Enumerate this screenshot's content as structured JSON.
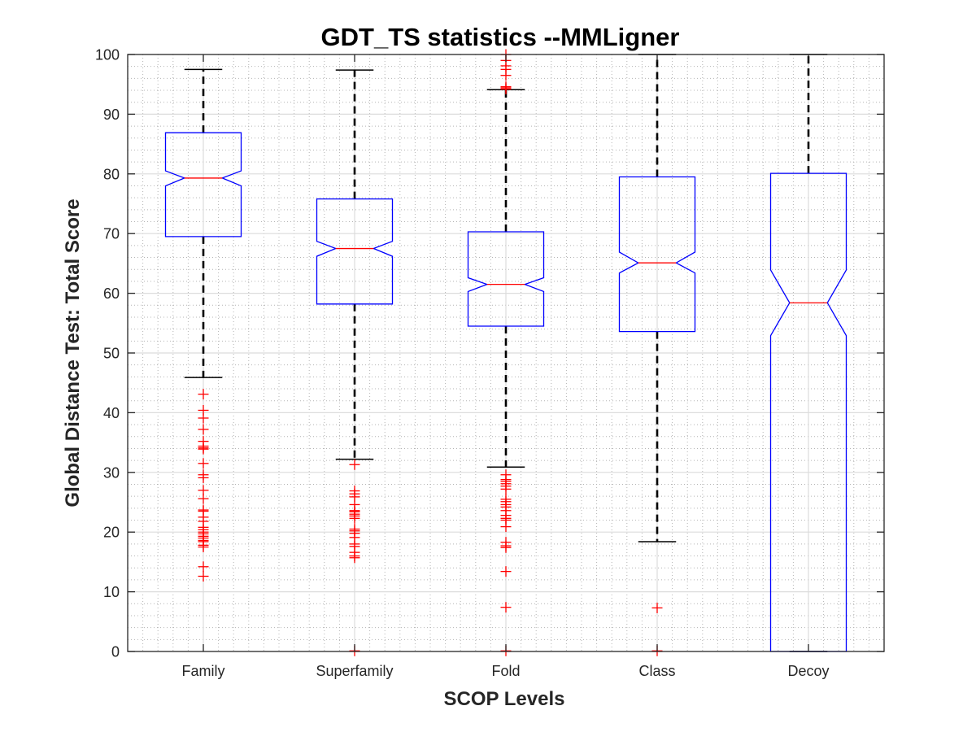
{
  "chart_data": {
    "type": "boxplot",
    "title": "GDT_TS statistics --MMLigner",
    "xlabel": "SCOP Levels",
    "ylabel": "Global Distance Test: Total Score",
    "ylim": [
      0,
      100
    ],
    "yticks": [
      0,
      10,
      20,
      30,
      40,
      50,
      60,
      70,
      80,
      90,
      100
    ],
    "ytick_labels": [
      "0",
      "10",
      "20",
      "30",
      "40",
      "50",
      "60",
      "70",
      "80",
      "90",
      "100"
    ],
    "grid": "major and minor",
    "notched": true,
    "colors": {
      "box": "#0000ff",
      "median": "#ff0000",
      "whisker": "#000000",
      "outlier": "#ff0000",
      "grid_major": "#dcdcdc",
      "grid_minor": "#b4b4b4",
      "axis": "#262626"
    },
    "categories": [
      "Family",
      "Superfamily",
      "Fold",
      "Class",
      "Decoy"
    ],
    "series": [
      {
        "name": "Family",
        "whisker_low": 45.9,
        "q1": 69.5,
        "notch_low": 78.0,
        "median": 79.3,
        "notch_high": 80.5,
        "q3": 86.9,
        "whisker_high": 97.5,
        "outliers": [
          43.1,
          40.4,
          39.1,
          37.2,
          35.2,
          34.4,
          34.1,
          33.9,
          31.5,
          29.6,
          29.1,
          27.0,
          25.6,
          23.7,
          23.5,
          22.5,
          21.8,
          20.8,
          20.4,
          20.0,
          19.7,
          19.3,
          19.0,
          18.6,
          18.4,
          17.8,
          17.5,
          14.2,
          12.6
        ]
      },
      {
        "name": "Superfamily",
        "whisker_low": 32.2,
        "q1": 58.2,
        "notch_low": 66.2,
        "median": 67.5,
        "notch_high": 68.7,
        "q3": 75.8,
        "whisker_high": 97.4,
        "outliers": [
          31.3,
          26.9,
          26.4,
          25.9,
          24.6,
          23.6,
          23.4,
          23.0,
          22.7,
          22.3,
          20.5,
          20.2,
          19.8,
          19.1,
          18.0,
          17.6,
          16.6,
          16.0,
          15.7,
          0.1
        ]
      },
      {
        "name": "Fold",
        "whisker_low": 30.9,
        "q1": 54.5,
        "notch_low": 60.3,
        "median": 61.5,
        "notch_high": 62.6,
        "q3": 70.3,
        "whisker_high": 94.1,
        "outliers": [
          100.0,
          99.0,
          98.1,
          97.5,
          96.5,
          94.6,
          94.4,
          94.2,
          29.6,
          28.8,
          28.5,
          28.1,
          27.7,
          27.2,
          25.5,
          25.1,
          24.6,
          24.2,
          23.6,
          22.8,
          22.3,
          22.0,
          20.9,
          18.3,
          17.7,
          17.4,
          13.4,
          7.4,
          0.1
        ]
      },
      {
        "name": "Class",
        "whisker_low": 18.4,
        "q1": 53.6,
        "notch_low": 63.4,
        "median": 65.1,
        "notch_high": 66.9,
        "q3": 79.5,
        "whisker_high": 100.0,
        "outliers": [
          7.3,
          0.1
        ]
      },
      {
        "name": "Decoy",
        "whisker_low": 0.0,
        "q1": 0.0,
        "notch_low": 52.9,
        "median": 58.4,
        "notch_high": 63.9,
        "q3": 80.1,
        "whisker_high": 100.0,
        "outliers": []
      }
    ]
  }
}
